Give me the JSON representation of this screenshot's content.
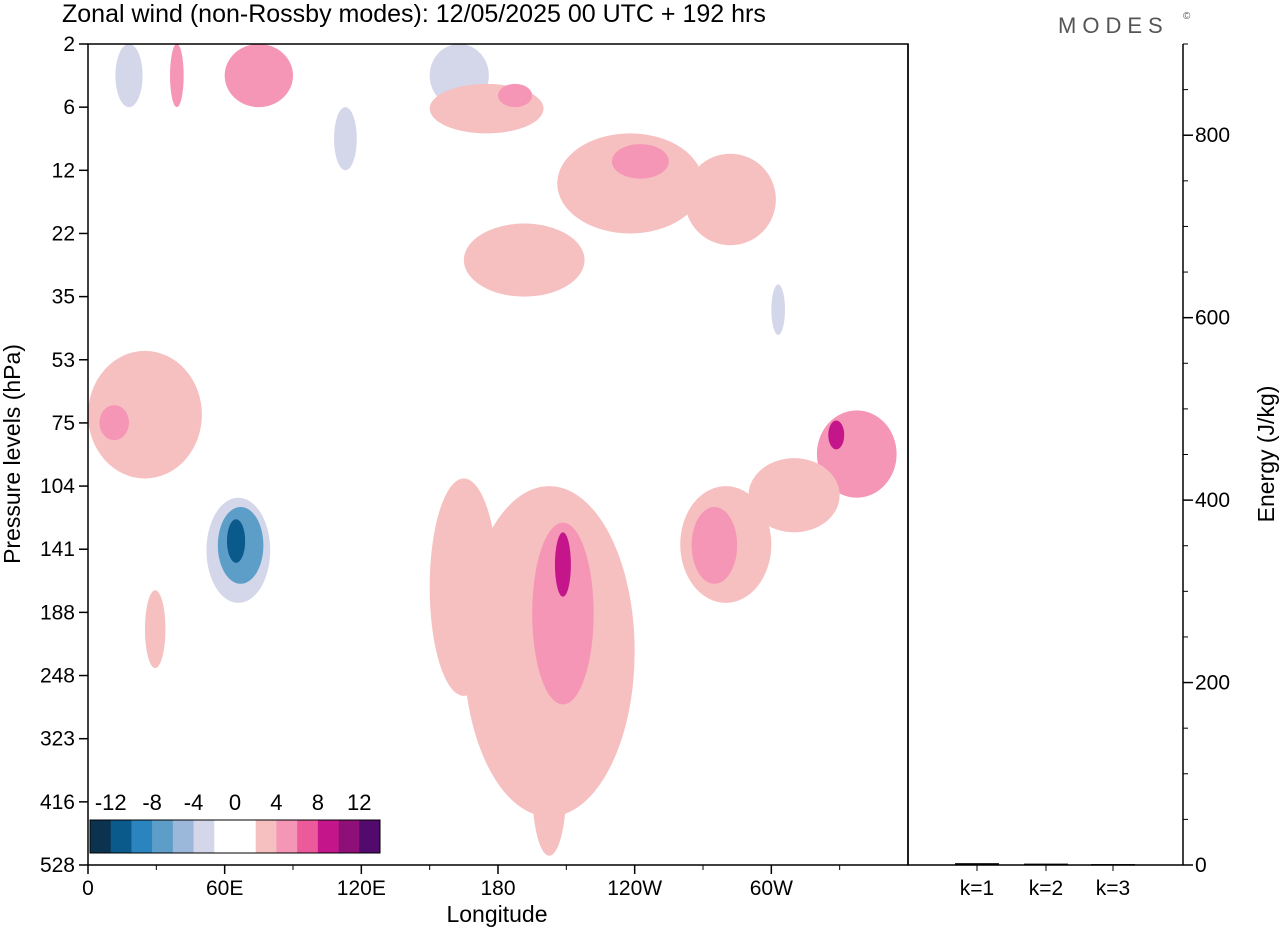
{
  "header": {
    "title": "Zonal wind (non-Rossby modes):  12/05/2025  00 UTC  + 192 hrs",
    "brand": "MODES",
    "brand_mark": "©"
  },
  "chart_data": [
    {
      "type": "heatmap",
      "title": "Zonal wind (non-Rossby modes):  12/05/2025  00 UTC  + 192 hrs",
      "xlabel": "Longitude",
      "ylabel": "Pressure levels (hPa)",
      "x_tick_labels": [
        "0",
        "60E",
        "120E",
        "180",
        "120W",
        "60W"
      ],
      "y_tick_labels": [
        "2",
        "6",
        "12",
        "22",
        "35",
        "53",
        "75",
        "104",
        "141",
        "188",
        "248",
        "323",
        "416",
        "528"
      ],
      "colorbar": {
        "labels": [
          "-12",
          "-8",
          "-4",
          "0",
          "4",
          "8",
          "12"
        ],
        "colors": [
          "#0b3350",
          "#0b5a8c",
          "#2a84bd",
          "#5d9ec9",
          "#9bb8da",
          "#d4d7ea",
          "#ffffff",
          "#ffffff",
          "#f7c0c0",
          "#f596b6",
          "#ec5a9c",
          "#c4158a",
          "#8f0f79",
          "#520a6c"
        ]
      },
      "regions": [
        {
          "lon": [
            0,
            12
          ],
          "lev": [
            2,
            6
          ],
          "value": -2
        },
        {
          "lon": [
            12,
            24
          ],
          "lev": [
            2,
            6
          ],
          "value": -4
        },
        {
          "lon": [
            36,
            42
          ],
          "lev": [
            2,
            6
          ],
          "value": 4
        },
        {
          "lon": [
            60,
            90
          ],
          "lev": [
            2,
            6
          ],
          "value": 4
        },
        {
          "lon": [
            104,
            150
          ],
          "lev": [
            2,
            6
          ],
          "value": -2
        },
        {
          "lon": [
            150,
            176
          ],
          "lev": [
            2,
            6
          ],
          "value": -4
        },
        {
          "lon": [
            150,
            200
          ],
          "lev": [
            4,
            8
          ],
          "value": 2
        },
        {
          "lon": [
            180,
            195
          ],
          "lev": [
            4,
            6
          ],
          "value": 4
        },
        {
          "lon": [
            290,
            345
          ],
          "lev": [
            2,
            8
          ],
          "value": -2
        },
        {
          "lon": [
            50,
            160
          ],
          "lev": [
            6,
            35
          ],
          "value": -2
        },
        {
          "lon": [
            108,
            118
          ],
          "lev": [
            6,
            12
          ],
          "value": -4
        },
        {
          "lon": [
            206,
            270
          ],
          "lev": [
            8,
            22
          ],
          "value": 2
        },
        {
          "lon": [
            230,
            255
          ],
          "lev": [
            9,
            13
          ],
          "value": 4
        },
        {
          "lon": [
            262,
            302
          ],
          "lev": [
            10,
            24
          ],
          "value": 2
        },
        {
          "lon": [
            165,
            218
          ],
          "lev": [
            20,
            35
          ],
          "value": 2
        },
        {
          "lon": [
            290,
            355
          ],
          "lev": [
            30,
            90
          ],
          "value": -2
        },
        {
          "lon": [
            300,
            306
          ],
          "lev": [
            32,
            45
          ],
          "value": -4
        },
        {
          "lon": [
            0,
            50
          ],
          "lev": [
            50,
            100
          ],
          "value": 2
        },
        {
          "lon": [
            5,
            18
          ],
          "lev": [
            68,
            82
          ],
          "value": 4
        },
        {
          "lon": [
            320,
            355
          ],
          "lev": [
            70,
            110
          ],
          "value": 4
        },
        {
          "lon": [
            325,
            332
          ],
          "lev": [
            74,
            86
          ],
          "value": 8
        },
        {
          "lon": [
            290,
            330
          ],
          "lev": [
            90,
            130
          ],
          "value": 2
        },
        {
          "lon": [
            260,
            300
          ],
          "lev": [
            104,
            180
          ],
          "value": 2
        },
        {
          "lon": [
            265,
            285
          ],
          "lev": [
            115,
            165
          ],
          "value": 4
        },
        {
          "lon": [
            20,
            150
          ],
          "lev": [
            85,
            280
          ],
          "value": -2
        },
        {
          "lon": [
            52,
            80
          ],
          "lev": [
            110,
            180
          ],
          "value": -4
        },
        {
          "lon": [
            57,
            77
          ],
          "lev": [
            115,
            165
          ],
          "value": -8
        },
        {
          "lon": [
            61,
            69
          ],
          "lev": [
            122,
            150
          ],
          "value": -12
        },
        {
          "lon": [
            110,
            160
          ],
          "lev": [
            88,
            130
          ],
          "value": -2
        },
        {
          "lon": [
            150,
            180
          ],
          "lev": [
            100,
            270
          ],
          "value": 2
        },
        {
          "lon": [
            165,
            240
          ],
          "lev": [
            104,
            440
          ],
          "value": 2
        },
        {
          "lon": [
            195,
            222
          ],
          "lev": [
            124,
            280
          ],
          "value": 4
        },
        {
          "lon": [
            205,
            212
          ],
          "lev": [
            130,
            175
          ],
          "value": 8
        },
        {
          "lon": [
            240,
            300
          ],
          "lev": [
            200,
            380
          ],
          "value": -2
        },
        {
          "lon": [
            25,
            34
          ],
          "lev": [
            170,
            240
          ],
          "value": 2
        },
        {
          "lon": [
            80,
            110
          ],
          "lev": [
            220,
            420
          ],
          "value": -2
        },
        {
          "lon": [
            320,
            355
          ],
          "lev": [
            200,
            400
          ],
          "value": -2
        },
        {
          "lon": [
            195,
            210
          ],
          "lev": [
            300,
            510
          ],
          "value": 2
        },
        {
          "lon": [
            0,
            8
          ],
          "lev": [
            320,
            416
          ],
          "value": -2
        }
      ]
    },
    {
      "type": "bar",
      "ylabel": "Energy (J/kg)",
      "categories": [
        "k=1",
        "k=2",
        "k=3"
      ],
      "values": [
        2,
        1.5,
        1
      ],
      "ylim": [
        0,
        900
      ],
      "y_tick_labels": [
        "0",
        "200",
        "400",
        "600",
        "800"
      ]
    }
  ]
}
